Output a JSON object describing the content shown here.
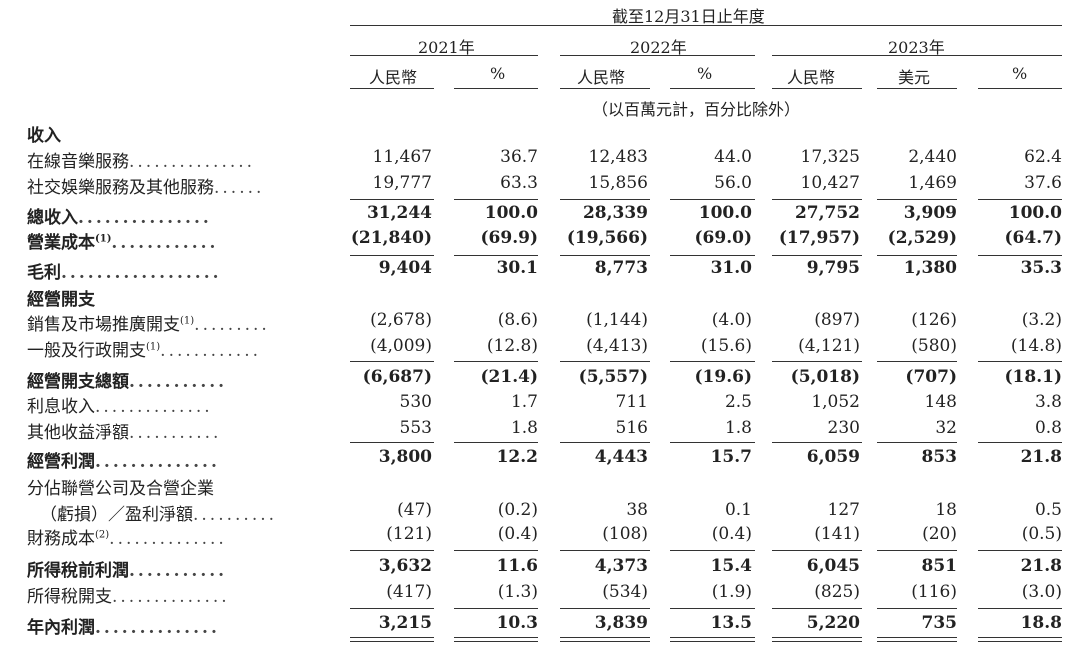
{
  "header": {
    "period": "截至12月31日止年度",
    "years": [
      "2021年",
      "2022年",
      "2023年"
    ],
    "subheaders": [
      "人民幣",
      "%",
      "人民幣",
      "%",
      "人民幣",
      "美元",
      "%"
    ],
    "unit_note": "（以百萬元計，百分比除外）"
  },
  "rows": [
    {
      "label": "收入",
      "style": "section",
      "values": []
    },
    {
      "label": "在線音樂服務",
      "leader": "...............",
      "values": [
        "11,467",
        "36.7",
        "12,483",
        "44.0",
        "17,325",
        "2,440",
        "62.4"
      ]
    },
    {
      "label": "社交娛樂服務及其他服務",
      "leader": "......",
      "values": [
        "19,777",
        "63.3",
        "15,856",
        "56.0",
        "10,427",
        "1,469",
        "37.6"
      ]
    },
    {
      "label": "總收入",
      "leader": "...............",
      "style": "bold",
      "values": [
        "31,244",
        "100.0",
        "28,339",
        "100.0",
        "27,752",
        "3,909",
        "100.0"
      ]
    },
    {
      "label": "營業成本",
      "sup": "(1)",
      "leader": "............",
      "style": "bold",
      "values": [
        "(21,840)",
        "(69.9)",
        "(19,566)",
        "(69.0)",
        "(17,957)",
        "(2,529)",
        "(64.7)"
      ]
    },
    {
      "label": "毛利",
      "leader": "..................",
      "style": "bold",
      "values": [
        "9,404",
        "30.1",
        "8,773",
        "31.0",
        "9,795",
        "1,380",
        "35.3"
      ]
    },
    {
      "label": "經營開支",
      "style": "section",
      "values": []
    },
    {
      "label": "銷售及市場推廣開支",
      "sup": "(1)",
      "leader": ".........",
      "values": [
        "(2,678)",
        "(8.6)",
        "(1,144)",
        "(4.0)",
        "(897)",
        "(126)",
        "(3.2)"
      ]
    },
    {
      "label": "一般及行政開支",
      "sup": "(1)",
      "leader": "............",
      "values": [
        "(4,009)",
        "(12.8)",
        "(4,413)",
        "(15.6)",
        "(4,121)",
        "(580)",
        "(14.8)"
      ]
    },
    {
      "label": "經營開支總額",
      "leader": "...........",
      "style": "bold",
      "values": [
        "(6,687)",
        "(21.4)",
        "(5,557)",
        "(19.6)",
        "(5,018)",
        "(707)",
        "(18.1)"
      ]
    },
    {
      "label": "利息收入",
      "leader": "..............",
      "values": [
        "530",
        "1.7",
        "711",
        "2.5",
        "1,052",
        "148",
        "3.8"
      ]
    },
    {
      "label": "其他收益淨額",
      "leader": "...........",
      "values": [
        "553",
        "1.8",
        "516",
        "1.8",
        "230",
        "32",
        "0.8"
      ]
    },
    {
      "label": "經營利潤",
      "leader": "..............",
      "style": "bold",
      "values": [
        "3,800",
        "12.2",
        "4,443",
        "15.7",
        "6,059",
        "853",
        "21.8"
      ]
    },
    {
      "label": "分佔聯營公司及合營企業",
      "values": []
    },
    {
      "label": "（虧損）／盈利淨額",
      "leader": "..........",
      "indent": true,
      "values": [
        "(47)",
        "(0.2)",
        "38",
        "0.1",
        "127",
        "18",
        "0.5"
      ]
    },
    {
      "label": "財務成本",
      "sup": "(2)",
      "leader": "..............",
      "values": [
        "(121)",
        "(0.4)",
        "(108)",
        "(0.4)",
        "(141)",
        "(20)",
        "(0.5)"
      ]
    },
    {
      "label": "所得稅前利潤",
      "leader": "...........",
      "style": "bold",
      "values": [
        "3,632",
        "11.6",
        "4,373",
        "15.4",
        "6,045",
        "851",
        "21.8"
      ]
    },
    {
      "label": "所得稅開支",
      "leader": "..............",
      "values": [
        "(417)",
        "(1.3)",
        "(534)",
        "(1.9)",
        "(825)",
        "(116)",
        "(3.0)"
      ]
    },
    {
      "label": "年內利潤",
      "leader": "..............",
      "style": "bold",
      "values": [
        "3,215",
        "10.3",
        "3,839",
        "13.5",
        "5,220",
        "735",
        "18.8"
      ]
    }
  ]
}
